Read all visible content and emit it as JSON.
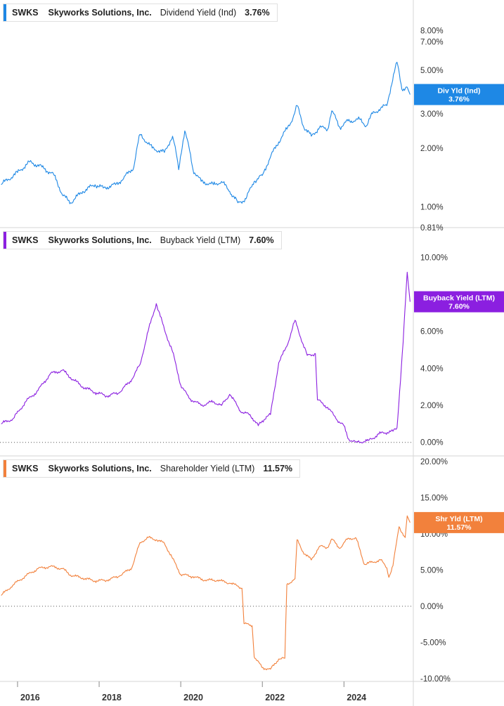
{
  "chart_data": [
    {
      "type": "line",
      "legend": {
        "ticker": "SWKS",
        "company": "Skyworks Solutions, Inc.",
        "metric": "Dividend Yield (Ind)",
        "value": "3.76%"
      },
      "badge": {
        "label": "Div Yld (Ind)",
        "value": "3.76%"
      },
      "color": "#1e88e5",
      "y_scale": "log",
      "ylim": [
        0.81,
        10.2
      ],
      "yticks": [
        1,
        2,
        3,
        5,
        7,
        8
      ],
      "ytick_labels": [
        "1.00%",
        "2.00%",
        "3.00%",
        "5.00%",
        "7.00%",
        "8.00%"
      ],
      "y_min_label": "0.81%",
      "x": [
        2015.6,
        2016.0,
        2016.3,
        2016.6,
        2016.9,
        2017.1,
        2017.3,
        2017.6,
        2017.9,
        2018.1,
        2018.4,
        2018.6,
        2018.85,
        2019.0,
        2019.3,
        2019.6,
        2019.8,
        2019.95,
        2020.1,
        2020.3,
        2020.5,
        2020.8,
        2021.0,
        2021.2,
        2021.4,
        2021.6,
        2021.8,
        2022.0,
        2022.2,
        2022.4,
        2022.6,
        2022.75,
        2022.85,
        2023.0,
        2023.2,
        2023.4,
        2023.6,
        2023.7,
        2023.9,
        2024.1,
        2024.4,
        2024.55,
        2024.7,
        2024.9,
        2025.05,
        2025.15,
        2025.3,
        2025.42,
        2025.55,
        2025.62
      ],
      "y": [
        1.3,
        1.5,
        1.7,
        1.6,
        1.45,
        1.15,
        1.05,
        1.2,
        1.3,
        1.25,
        1.3,
        1.4,
        1.6,
        2.35,
        2.0,
        1.9,
        2.3,
        1.55,
        2.45,
        1.55,
        1.35,
        1.3,
        1.35,
        1.2,
        1.05,
        1.1,
        1.35,
        1.45,
        1.8,
        2.15,
        2.5,
        2.85,
        3.3,
        2.6,
        2.3,
        2.55,
        2.5,
        3.1,
        2.55,
        2.75,
        2.8,
        2.6,
        3.0,
        3.2,
        3.3,
        4.1,
        5.5,
        4.0,
        4.1,
        3.76
      ]
    },
    {
      "type": "line",
      "legend": {
        "ticker": "SWKS",
        "company": "Skyworks Solutions, Inc.",
        "metric": "Buyback Yield (LTM)",
        "value": "7.60%"
      },
      "badge": {
        "label": "Buyback Yield (LTM)",
        "value": "7.60%"
      },
      "color": "#8b1fe0",
      "y_scale": "linear",
      "ylim": [
        -0.2,
        11.0
      ],
      "yticks": [
        0,
        2,
        4,
        6,
        10
      ],
      "ytick_labels": [
        "0.00%",
        "2.00%",
        "4.00%",
        "6.00%",
        "10.00%"
      ],
      "x": [
        2015.6,
        2015.9,
        2016.2,
        2016.5,
        2016.8,
        2017.1,
        2017.3,
        2017.6,
        2017.9,
        2018.2,
        2018.5,
        2018.8,
        2019.0,
        2019.2,
        2019.4,
        2019.6,
        2019.8,
        2020.0,
        2020.2,
        2020.5,
        2020.8,
        2021.0,
        2021.2,
        2021.5,
        2021.7,
        2021.9,
        2022.1,
        2022.2,
        2022.4,
        2022.6,
        2022.8,
        2023.0,
        2023.1,
        2023.3,
        2023.35,
        2023.6,
        2023.8,
        2024.0,
        2024.1,
        2024.3,
        2024.6,
        2024.9,
        2025.2,
        2025.3,
        2025.45,
        2025.55,
        2025.62
      ],
      "y": [
        1.0,
        1.3,
        2.2,
        2.8,
        3.7,
        3.9,
        3.5,
        3.0,
        2.7,
        2.5,
        2.7,
        3.4,
        4.2,
        6.0,
        7.5,
        6.1,
        4.9,
        3.1,
        2.4,
        2.0,
        2.2,
        2.0,
        2.6,
        1.6,
        1.5,
        0.9,
        1.4,
        1.5,
        4.3,
        5.2,
        6.6,
        5.3,
        4.7,
        4.8,
        2.3,
        1.9,
        1.3,
        0.9,
        0.2,
        0.0,
        0.1,
        0.5,
        0.6,
        0.8,
        5.4,
        9.2,
        7.6
      ]
    },
    {
      "type": "line",
      "legend": {
        "ticker": "SWKS",
        "company": "Skyworks Solutions, Inc.",
        "metric": "Shareholder Yield (LTM)",
        "value": "11.57%"
      },
      "badge": {
        "label": "Shr Yld (LTM)",
        "value": "11.57%"
      },
      "color": "#f2813c",
      "y_scale": "linear",
      "ylim": [
        -10.2,
        20.4
      ],
      "yticks": [
        -10,
        -5,
        0,
        5,
        10,
        15,
        20
      ],
      "ytick_labels": [
        "-10.00%",
        "-5.00%",
        "0.00%",
        "5.00%",
        "10.00%",
        "15.00%",
        "20.00%"
      ],
      "x": [
        2015.6,
        2015.9,
        2016.2,
        2016.5,
        2016.8,
        2017.1,
        2017.3,
        2017.6,
        2017.9,
        2018.2,
        2018.5,
        2018.8,
        2019.0,
        2019.2,
        2019.4,
        2019.6,
        2019.8,
        2020.0,
        2020.3,
        2020.6,
        2020.9,
        2021.2,
        2021.4,
        2021.5,
        2021.55,
        2021.75,
        2021.8,
        2022.0,
        2022.2,
        2022.4,
        2022.55,
        2022.6,
        2022.8,
        2022.85,
        2023.0,
        2023.2,
        2023.4,
        2023.6,
        2023.7,
        2023.9,
        2024.1,
        2024.3,
        2024.5,
        2024.7,
        2024.9,
        2025.05,
        2025.1,
        2025.2,
        2025.35,
        2025.5,
        2025.55,
        2025.62
      ],
      "y": [
        1.5,
        3.0,
        4.2,
        5.2,
        5.5,
        5.2,
        4.3,
        3.9,
        3.5,
        3.6,
        4.2,
        5.3,
        8.8,
        9.5,
        9.2,
        8.7,
        6.6,
        4.4,
        4.1,
        3.6,
        3.6,
        3.2,
        2.8,
        2.5,
        -2.4,
        -2.7,
        -7.0,
        -8.5,
        -8.7,
        -7.3,
        -7.2,
        3.0,
        3.8,
        9.2,
        7.5,
        6.4,
        8.3,
        8.1,
        9.3,
        8.0,
        9.4,
        9.4,
        5.8,
        6.1,
        6.4,
        5.3,
        4.0,
        5.6,
        11.0,
        9.5,
        12.5,
        11.57
      ]
    }
  ],
  "x_axis": {
    "range": [
      2015.57,
      2025.7
    ],
    "ticks": [
      2016,
      2018,
      2020,
      2022,
      2024
    ],
    "labels": [
      "2016",
      "2018",
      "2020",
      "2022",
      "2024"
    ]
  }
}
